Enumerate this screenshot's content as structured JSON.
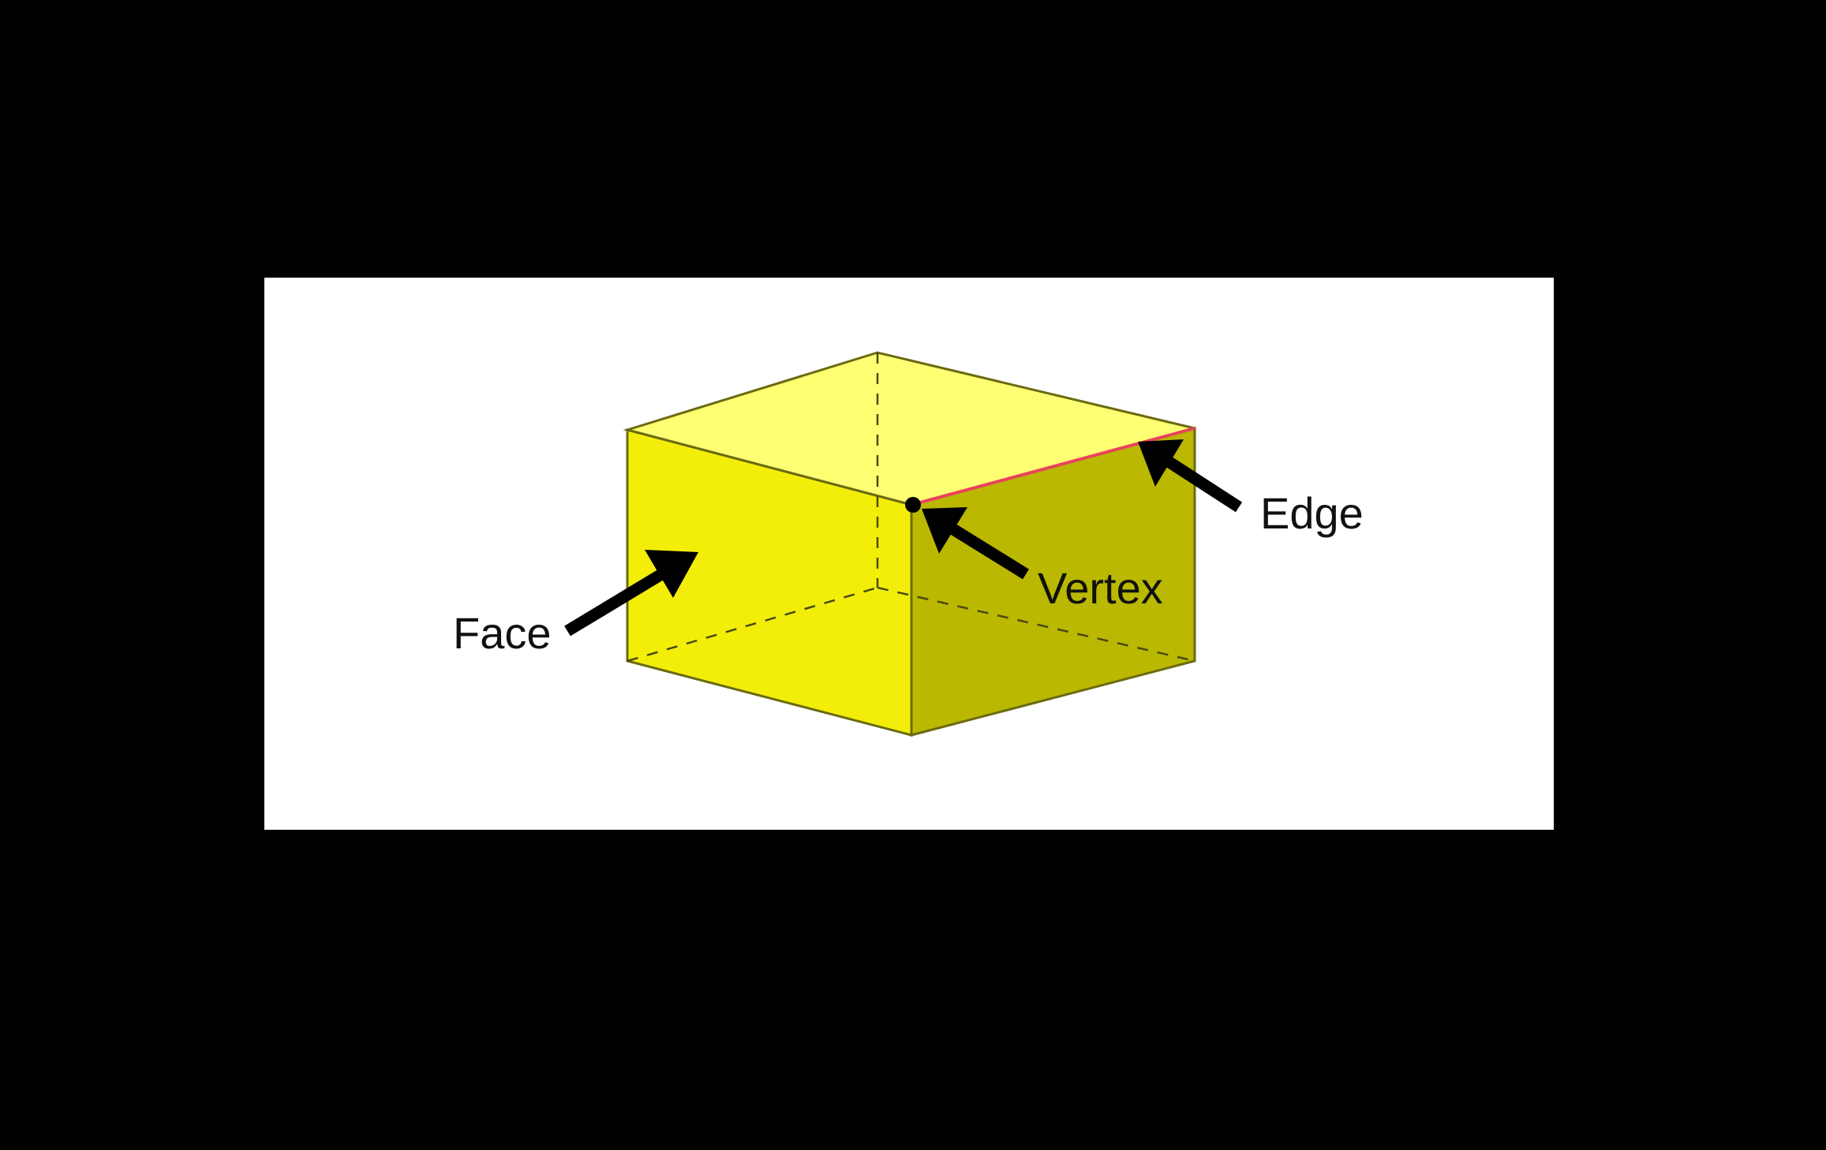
{
  "labels": {
    "face": "Face",
    "vertex": "Vertex",
    "edge": "Edge"
  },
  "colors": {
    "background": "#000000",
    "panel": "#ffffff",
    "top_face": "#ffff73",
    "front_face": "#f2ee0a",
    "side_face": "#bab800",
    "outline": "#6b6a10",
    "highlighted_edge": "#e8435a",
    "arrow": "#000000"
  },
  "icons": {
    "face_pointer": "arrow-icon",
    "vertex_pointer": "arrow-icon",
    "edge_pointer": "arrow-icon",
    "vertex_marker": "dot-icon"
  }
}
